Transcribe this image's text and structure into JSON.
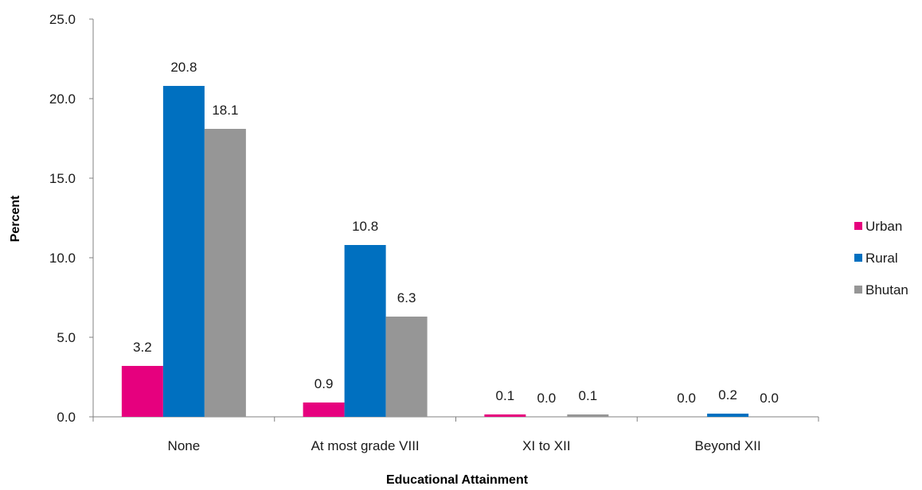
{
  "chart_data": {
    "type": "bar",
    "title": "",
    "xlabel": "Educational Attainment",
    "ylabel": "Percent",
    "ylim": [
      0,
      25
    ],
    "yticks": [
      0,
      5,
      10,
      15,
      20,
      25
    ],
    "ytick_labels": [
      "0.0",
      "5.0",
      "10.0",
      "15.0",
      "20.0",
      "25.0"
    ],
    "grid": false,
    "legend_position": "right",
    "categories": [
      "None",
      "At most grade VIII",
      "XI to XII",
      "Beyond XII"
    ],
    "series": [
      {
        "name": "Urban",
        "color": "#e6007e",
        "values": [
          3.2,
          0.9,
          0.1,
          0.0
        ],
        "labels": [
          "3.2",
          "0.9",
          "0.1",
          "0.0"
        ]
      },
      {
        "name": "Rural",
        "color": "#0070c0",
        "values": [
          20.8,
          10.8,
          0.0,
          0.2
        ],
        "labels": [
          "20.8",
          "10.8",
          "0.0",
          "0.2"
        ]
      },
      {
        "name": "Bhutan",
        "color": "#969696",
        "values": [
          18.1,
          6.3,
          0.1,
          0.0
        ],
        "labels": [
          "18.1",
          "6.3",
          "0.1",
          "0.0"
        ]
      }
    ]
  }
}
